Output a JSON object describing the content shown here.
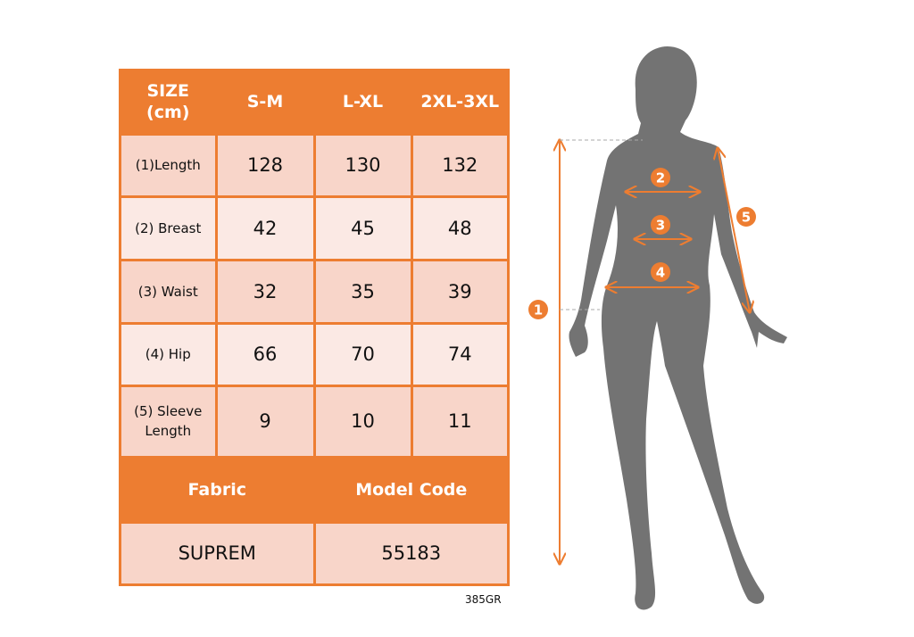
{
  "table": {
    "header": [
      "SIZE\n(cm)",
      "S-M",
      "L-XL",
      "2XL-3XL"
    ],
    "rows": [
      {
        "label": "(1)Length",
        "values": [
          "128",
          "130",
          "132"
        ]
      },
      {
        "label": "(2) Breast",
        "values": [
          "42",
          "45",
          "48"
        ]
      },
      {
        "label": "(3) Waist",
        "values": [
          "32",
          "35",
          "39"
        ]
      },
      {
        "label": "(4) Hip",
        "values": [
          "66",
          "70",
          "74"
        ]
      },
      {
        "label": "(5) Sleeve\nLength",
        "values": [
          "9",
          "10",
          "11"
        ]
      }
    ],
    "footer_header": [
      "Fabric",
      "Model Code"
    ],
    "footer_values": [
      "SUPREM",
      "55183"
    ]
  },
  "product_code": "385GR",
  "figure": {
    "markers": [
      "1",
      "2",
      "3",
      "4",
      "5"
    ]
  },
  "colors": {
    "accent": "#ed7d31",
    "row_dark": "#f8d5c9",
    "row_light": "#fbe9e4",
    "silhouette": "#737373"
  }
}
